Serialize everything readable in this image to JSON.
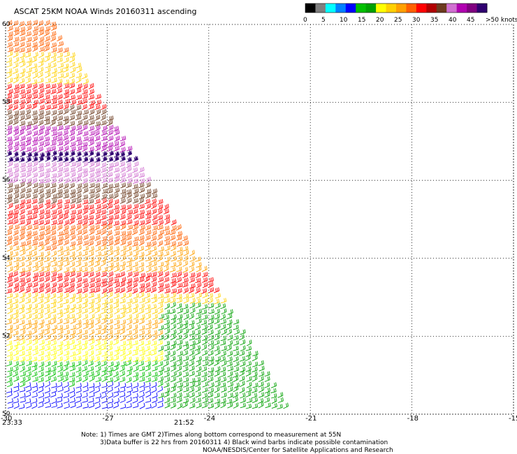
{
  "title": "ASCAT 25KM NOAA Winds 20160311 ascending",
  "colorbar": {
    "labels": [
      "0",
      "5",
      "10",
      "15",
      "20",
      "25",
      "30",
      "35",
      "40",
      "45",
      ">50 knots"
    ],
    "colors": [
      "#000000",
      "#7f7f7f",
      "#00ffff",
      "#0080ff",
      "#0000ff",
      "#00c000",
      "#00a000",
      "#ffff00",
      "#ffd000",
      "#ffa000",
      "#ff6000",
      "#ff0000",
      "#b00000",
      "#6b3a1e",
      "#d070d0",
      "#b000b0",
      "#800080",
      "#300070"
    ]
  },
  "chart_data": {
    "type": "scatter",
    "title": "ASCAT 25KM NOAA Winds 20160311 ascending",
    "x_ticks": [
      "-30",
      "-27",
      "-24",
      "-21",
      "-18",
      "-15"
    ],
    "y_ticks": [
      "50",
      "52",
      "54",
      "56",
      "58",
      "60"
    ],
    "xlim": [
      -30,
      -15
    ],
    "ylim": [
      50,
      60
    ],
    "grid": true,
    "swath_polygon": [
      [
        -30,
        60
      ],
      [
        -28.7,
        60
      ],
      [
        -21.6,
        50
      ],
      [
        -30,
        50
      ]
    ],
    "speed_bands": [
      {
        "lat_range": [
          59.2,
          60
        ],
        "speed_knots": 32,
        "color": "#ff6000"
      },
      {
        "lat_range": [
          58.4,
          59.2
        ],
        "speed_knots": 27,
        "color": "#ffd000"
      },
      {
        "lat_range": [
          57.8,
          58.4
        ],
        "speed_knots": 34,
        "color": "#ff0000"
      },
      {
        "lat_range": [
          57.3,
          57.8
        ],
        "speed_knots": 38,
        "color": "#6b3a1e"
      },
      {
        "lat_range": [
          56.7,
          57.3
        ],
        "speed_knots": 46,
        "color": "#b000b0"
      },
      {
        "lat_range": [
          56.4,
          56.7
        ],
        "speed_knots": 52,
        "color": "#300070"
      },
      {
        "lat_range": [
          55.9,
          56.4
        ],
        "speed_knots": 44,
        "color": "#d070d0"
      },
      {
        "lat_range": [
          55.4,
          55.9
        ],
        "speed_knots": 40,
        "color": "#6b3a1e"
      },
      {
        "lat_range": [
          54.8,
          55.4
        ],
        "speed_knots": 34,
        "color": "#ff0000"
      },
      {
        "lat_range": [
          54.2,
          54.8
        ],
        "speed_knots": 30,
        "color": "#ff6000"
      },
      {
        "lat_range": [
          53.6,
          54.2
        ],
        "speed_knots": 27,
        "color": "#ffa000"
      },
      {
        "lat_range": [
          53.0,
          53.6
        ],
        "speed_knots": 33,
        "color": "#ff0000"
      },
      {
        "lat_range": [
          52.4,
          53.0
        ],
        "speed_knots": 24,
        "color": "#ffd000"
      },
      {
        "lat_range": [
          51.8,
          52.4
        ],
        "speed_knots": 28,
        "color": "#ffa000"
      },
      {
        "lat_range": [
          51.3,
          51.8
        ],
        "speed_knots": 22,
        "color": "#ffff00"
      },
      {
        "lat_range": [
          50.7,
          51.3
        ],
        "speed_knots": 19,
        "color": "#00c000"
      },
      {
        "lat_range": [
          50.0,
          50.7
        ],
        "speed_knots": 15,
        "color": "#0000ff"
      }
    ],
    "green_zone": {
      "lon_min": -25.5,
      "lat_max": 52.8,
      "speed_knots": 18,
      "color": "#00a000"
    }
  },
  "time_labels": {
    "left": "23:33",
    "middle": "21:52",
    "color": "#8b1a6b"
  },
  "footer": {
    "line1": "Note: 1) Times are GMT 2)Times along bottom correspond to measurement at 55N",
    "line2": "3)Data buffer is 22 hrs from 20160311 4) Black wind barbs indicate possible contamination",
    "line3": "NOAA/NESDIS/Center for Satellite Applications and Research"
  }
}
